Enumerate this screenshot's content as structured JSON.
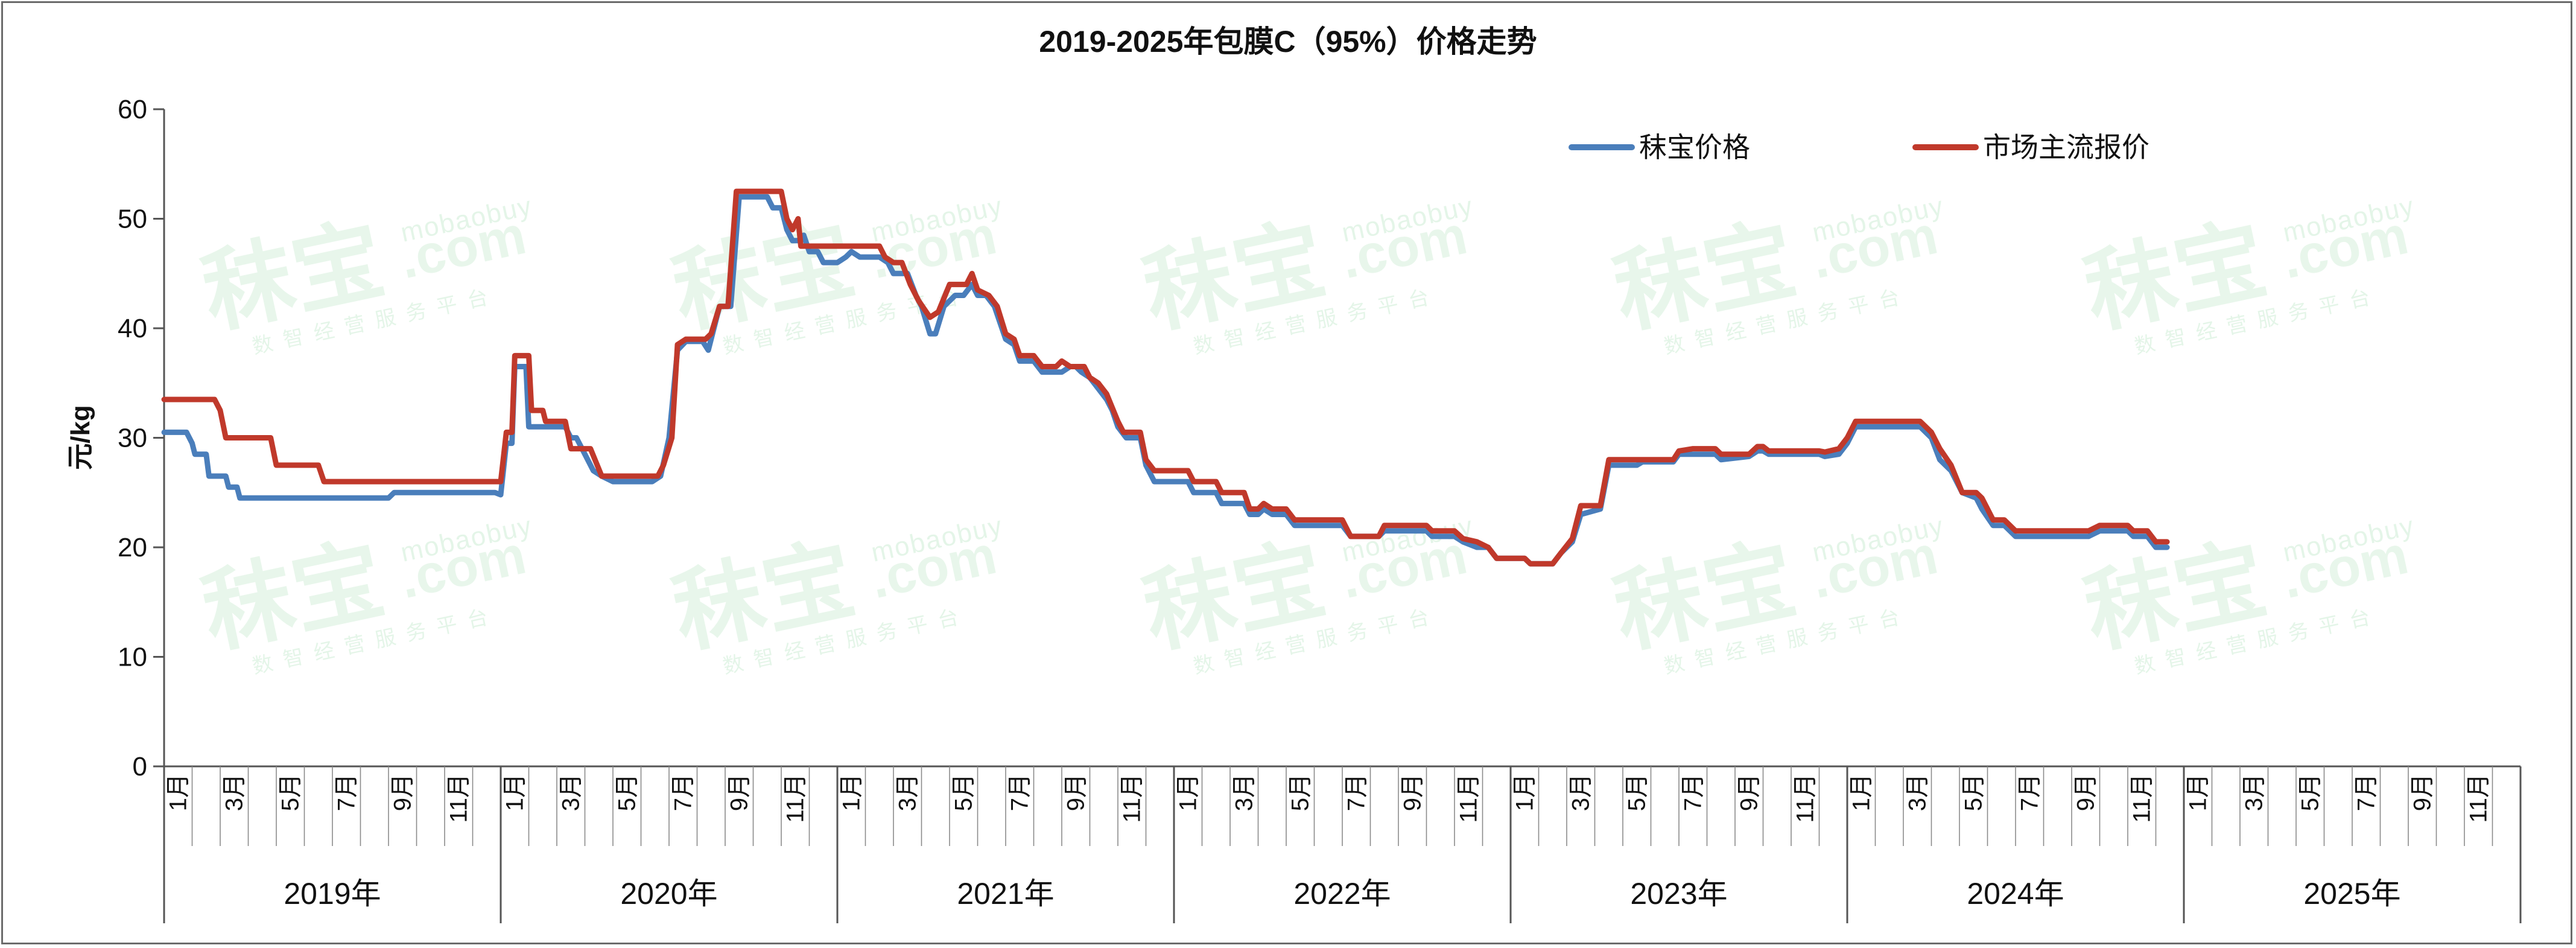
{
  "chart_data": {
    "type": "line",
    "title": "2019-2025年包膜C（95%）价格走势",
    "ylabel": "元/kg",
    "ylim": [
      0,
      60
    ],
    "yticks": [
      "0",
      "10",
      "20",
      "30",
      "40",
      "50",
      "60"
    ],
    "years": [
      "2019年",
      "2020年",
      "2021年",
      "2022年",
      "2023年",
      "2024年",
      "2025年"
    ],
    "month_labels": [
      "1月",
      "3月",
      "5月",
      "7月",
      "9月",
      "11月"
    ],
    "legend_position": "top-right",
    "watermark": {
      "brand": "秣宝",
      "domain": "mobaobuy",
      "com": ".com",
      "slogan": "数智经营服务平台"
    },
    "series": [
      {
        "name": "秣宝价格",
        "color": "#4a7ebb",
        "points": [
          [
            0,
            30.5
          ],
          [
            0.8,
            30.5
          ],
          [
            1.0,
            29.5
          ],
          [
            1.1,
            28.5
          ],
          [
            1.5,
            28.5
          ],
          [
            1.6,
            26.5
          ],
          [
            2.2,
            26.5
          ],
          [
            2.3,
            25.5
          ],
          [
            2.6,
            25.5
          ],
          [
            2.7,
            24.5
          ],
          [
            4.0,
            24.5
          ],
          [
            8.0,
            24.5
          ],
          [
            8.2,
            25.0
          ],
          [
            10.0,
            25.0
          ],
          [
            11.8,
            25.0
          ],
          [
            12.0,
            24.8
          ],
          [
            12.2,
            29.5
          ],
          [
            12.4,
            29.5
          ],
          [
            12.5,
            36.5
          ],
          [
            12.9,
            36.5
          ],
          [
            13.0,
            31.0
          ],
          [
            14.0,
            31.0
          ],
          [
            14.3,
            31.0
          ],
          [
            14.5,
            30.0
          ],
          [
            14.7,
            30.0
          ],
          [
            15.0,
            28.5
          ],
          [
            15.3,
            27.0
          ],
          [
            15.6,
            26.5
          ],
          [
            16.0,
            26.0
          ],
          [
            17.4,
            26.0
          ],
          [
            17.7,
            26.5
          ],
          [
            18.0,
            30.0
          ],
          [
            18.3,
            38.0
          ],
          [
            18.6,
            38.8
          ],
          [
            19.2,
            38.8
          ],
          [
            19.4,
            38.0
          ],
          [
            19.8,
            42.0
          ],
          [
            20.2,
            42.0
          ],
          [
            20.5,
            52.0
          ],
          [
            21.5,
            52.0
          ],
          [
            21.7,
            51.0
          ],
          [
            22.0,
            51.0
          ],
          [
            22.2,
            49.0
          ],
          [
            22.4,
            48.0
          ],
          [
            22.6,
            48.0
          ],
          [
            22.8,
            48.5
          ],
          [
            23.0,
            47.0
          ],
          [
            23.3,
            47.0
          ],
          [
            23.5,
            46.0
          ],
          [
            24.0,
            46.0
          ],
          [
            24.3,
            46.5
          ],
          [
            24.5,
            47.0
          ],
          [
            24.8,
            46.5
          ],
          [
            25.5,
            46.5
          ],
          [
            25.8,
            46.0
          ],
          [
            26.0,
            45.0
          ],
          [
            26.5,
            45.0
          ],
          [
            26.8,
            43.0
          ],
          [
            27.0,
            42.0
          ],
          [
            27.3,
            39.5
          ],
          [
            27.5,
            39.5
          ],
          [
            27.8,
            42.0
          ],
          [
            28.2,
            43.0
          ],
          [
            28.5,
            43.0
          ],
          [
            28.8,
            44.0
          ],
          [
            29.0,
            43.0
          ],
          [
            29.3,
            43.0
          ],
          [
            29.6,
            42.0
          ],
          [
            30.0,
            39.0
          ],
          [
            30.3,
            38.5
          ],
          [
            30.5,
            37.0
          ],
          [
            31.0,
            37.0
          ],
          [
            31.3,
            36.0
          ],
          [
            32.0,
            36.0
          ],
          [
            32.3,
            36.5
          ],
          [
            32.5,
            36.5
          ],
          [
            32.7,
            36.0
          ],
          [
            33.0,
            35.5
          ],
          [
            33.3,
            34.5
          ],
          [
            33.6,
            33.5
          ],
          [
            33.8,
            32.5
          ],
          [
            34.0,
            31.0
          ],
          [
            34.3,
            30.0
          ],
          [
            34.8,
            30.0
          ],
          [
            35.0,
            27.5
          ],
          [
            35.3,
            26.0
          ],
          [
            36.5,
            26.0
          ],
          [
            36.7,
            25.0
          ],
          [
            37.5,
            25.0
          ],
          [
            37.7,
            24.0
          ],
          [
            38.5,
            24.0
          ],
          [
            38.7,
            23.0
          ],
          [
            39.0,
            23.0
          ],
          [
            39.2,
            23.5
          ],
          [
            39.5,
            23.0
          ],
          [
            40.0,
            23.0
          ],
          [
            40.3,
            22.0
          ],
          [
            42.0,
            22.0
          ],
          [
            42.3,
            21.0
          ],
          [
            43.3,
            21.0
          ],
          [
            43.5,
            21.5
          ],
          [
            45.0,
            21.5
          ],
          [
            45.2,
            21.0
          ],
          [
            46.0,
            21.0
          ],
          [
            46.3,
            20.5
          ],
          [
            46.8,
            20.0
          ],
          [
            47.2,
            20.0
          ],
          [
            47.5,
            19.0
          ],
          [
            48.5,
            19.0
          ],
          [
            48.7,
            18.5
          ],
          [
            49.5,
            18.5
          ],
          [
            49.8,
            19.5
          ],
          [
            50.2,
            20.5
          ],
          [
            50.5,
            23.0
          ],
          [
            51.2,
            23.5
          ],
          [
            51.5,
            27.5
          ],
          [
            52.5,
            27.5
          ],
          [
            52.7,
            27.8
          ],
          [
            53.8,
            27.8
          ],
          [
            54.0,
            28.5
          ],
          [
            55.3,
            28.5
          ],
          [
            55.5,
            28.0
          ],
          [
            56.5,
            28.3
          ],
          [
            56.8,
            28.8
          ],
          [
            57.0,
            28.8
          ],
          [
            57.2,
            28.5
          ],
          [
            59.0,
            28.5
          ],
          [
            59.2,
            28.3
          ],
          [
            59.7,
            28.5
          ],
          [
            60.0,
            29.5
          ],
          [
            60.3,
            31.0
          ],
          [
            62.6,
            31.0
          ],
          [
            63.0,
            30.0
          ],
          [
            63.3,
            28.0
          ],
          [
            63.7,
            27.0
          ],
          [
            64.1,
            25.0
          ],
          [
            64.6,
            24.5
          ],
          [
            64.8,
            23.5
          ],
          [
            65.2,
            22.0
          ],
          [
            65.6,
            22.0
          ],
          [
            66.0,
            21.0
          ],
          [
            68.0,
            21.0
          ],
          [
            68.6,
            21.0
          ],
          [
            69.0,
            21.5
          ],
          [
            70.0,
            21.5
          ],
          [
            70.2,
            21.0
          ],
          [
            70.7,
            21.0
          ],
          [
            71.0,
            20.0
          ],
          [
            71.4,
            20.0
          ]
        ]
      },
      {
        "name": "市场主流报价",
        "color": "#c0392b",
        "points": [
          [
            0,
            33.5
          ],
          [
            1.8,
            33.5
          ],
          [
            2.0,
            32.5
          ],
          [
            2.2,
            30.0
          ],
          [
            3.8,
            30.0
          ],
          [
            4.0,
            27.5
          ],
          [
            5.5,
            27.5
          ],
          [
            5.7,
            26.0
          ],
          [
            8.0,
            26.0
          ],
          [
            12.0,
            26.0
          ],
          [
            12.2,
            30.5
          ],
          [
            12.4,
            30.5
          ],
          [
            12.5,
            37.5
          ],
          [
            13.0,
            37.5
          ],
          [
            13.1,
            32.5
          ],
          [
            13.5,
            32.5
          ],
          [
            13.6,
            31.5
          ],
          [
            14.3,
            31.5
          ],
          [
            14.5,
            29.0
          ],
          [
            15.2,
            29.0
          ],
          [
            15.6,
            26.5
          ],
          [
            17.6,
            26.5
          ],
          [
            17.8,
            27.5
          ],
          [
            18.1,
            30.0
          ],
          [
            18.3,
            38.5
          ],
          [
            18.6,
            39.0
          ],
          [
            19.3,
            39.0
          ],
          [
            19.5,
            39.5
          ],
          [
            19.8,
            42.0
          ],
          [
            20.1,
            42.0
          ],
          [
            20.4,
            52.5
          ],
          [
            22.0,
            52.5
          ],
          [
            22.2,
            50.0
          ],
          [
            22.4,
            49.0
          ],
          [
            22.6,
            50.0
          ],
          [
            22.7,
            47.5
          ],
          [
            25.5,
            47.5
          ],
          [
            25.7,
            46.5
          ],
          [
            26.0,
            46.0
          ],
          [
            26.3,
            46.0
          ],
          [
            26.6,
            44.0
          ],
          [
            26.9,
            42.5
          ],
          [
            27.3,
            41.0
          ],
          [
            27.6,
            41.5
          ],
          [
            28.0,
            44.0
          ],
          [
            28.6,
            44.0
          ],
          [
            28.8,
            45.0
          ],
          [
            29.0,
            43.5
          ],
          [
            29.4,
            43.0
          ],
          [
            29.7,
            42.0
          ],
          [
            30.0,
            39.5
          ],
          [
            30.3,
            39.0
          ],
          [
            30.5,
            37.5
          ],
          [
            31.0,
            37.5
          ],
          [
            31.3,
            36.5
          ],
          [
            31.8,
            36.5
          ],
          [
            32.0,
            37.0
          ],
          [
            32.3,
            36.5
          ],
          [
            32.8,
            36.5
          ],
          [
            33.0,
            35.5
          ],
          [
            33.3,
            35.0
          ],
          [
            33.6,
            34.0
          ],
          [
            34.0,
            31.5
          ],
          [
            34.2,
            30.5
          ],
          [
            34.8,
            30.5
          ],
          [
            35.0,
            28.0
          ],
          [
            35.3,
            27.0
          ],
          [
            36.5,
            27.0
          ],
          [
            36.7,
            26.0
          ],
          [
            37.5,
            26.0
          ],
          [
            37.7,
            25.0
          ],
          [
            38.5,
            25.0
          ],
          [
            38.7,
            23.5
          ],
          [
            39.0,
            23.5
          ],
          [
            39.2,
            24.0
          ],
          [
            39.5,
            23.5
          ],
          [
            40.0,
            23.5
          ],
          [
            40.3,
            22.5
          ],
          [
            42.0,
            22.5
          ],
          [
            42.3,
            21.0
          ],
          [
            43.3,
            21.0
          ],
          [
            43.5,
            22.0
          ],
          [
            45.0,
            22.0
          ],
          [
            45.2,
            21.5
          ],
          [
            46.0,
            21.5
          ],
          [
            46.3,
            20.8
          ],
          [
            46.8,
            20.5
          ],
          [
            47.2,
            20.0
          ],
          [
            47.5,
            19.0
          ],
          [
            48.5,
            19.0
          ],
          [
            48.7,
            18.5
          ],
          [
            49.5,
            18.5
          ],
          [
            49.8,
            19.5
          ],
          [
            50.2,
            20.8
          ],
          [
            50.5,
            23.8
          ],
          [
            51.2,
            23.8
          ],
          [
            51.5,
            28.0
          ],
          [
            52.5,
            28.0
          ],
          [
            52.7,
            28.0
          ],
          [
            53.8,
            28.0
          ],
          [
            54.0,
            28.8
          ],
          [
            54.5,
            29.0
          ],
          [
            55.3,
            29.0
          ],
          [
            55.5,
            28.5
          ],
          [
            56.5,
            28.5
          ],
          [
            56.8,
            29.2
          ],
          [
            57.0,
            29.2
          ],
          [
            57.2,
            28.8
          ],
          [
            59.0,
            28.8
          ],
          [
            59.2,
            28.7
          ],
          [
            59.7,
            29.0
          ],
          [
            60.0,
            30.0
          ],
          [
            60.3,
            31.5
          ],
          [
            62.6,
            31.5
          ],
          [
            63.0,
            30.5
          ],
          [
            63.3,
            29.0
          ],
          [
            63.7,
            27.5
          ],
          [
            64.1,
            25.0
          ],
          [
            64.6,
            25.0
          ],
          [
            64.8,
            24.5
          ],
          [
            65.2,
            22.5
          ],
          [
            65.6,
            22.5
          ],
          [
            66.0,
            21.5
          ],
          [
            68.6,
            21.5
          ],
          [
            69.0,
            22.0
          ],
          [
            70.0,
            22.0
          ],
          [
            70.2,
            21.5
          ],
          [
            70.7,
            21.5
          ],
          [
            71.0,
            20.5
          ],
          [
            71.4,
            20.5
          ]
        ]
      }
    ]
  }
}
